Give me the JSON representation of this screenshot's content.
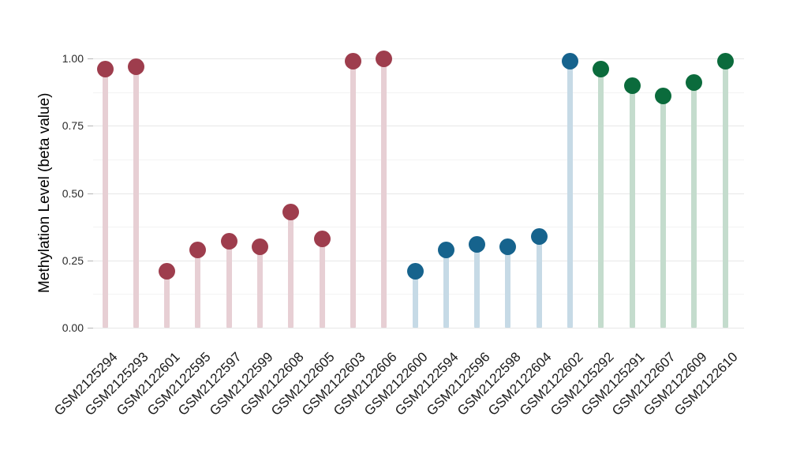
{
  "chart_data": {
    "type": "scatter",
    "variant": "lollipop",
    "title": "",
    "xlabel": "",
    "ylabel": "Methylation Level (beta value)",
    "ylim": [
      0,
      1
    ],
    "grid": "horizontal",
    "legend": "none",
    "yticks": [
      {
        "value": 0.0,
        "label": "0.00"
      },
      {
        "value": 0.25,
        "label": "0.25"
      },
      {
        "value": 0.5,
        "label": "0.50"
      },
      {
        "value": 0.75,
        "label": "0.75"
      },
      {
        "value": 1.0,
        "label": "1.00"
      }
    ],
    "minor_gridlines": [
      0.125,
      0.375,
      0.625,
      0.875
    ],
    "groups": {
      "maroon": {
        "dot_color": "#9e3d4d",
        "stem_color": "#e7cfd4"
      },
      "blue": {
        "dot_color": "#16638d",
        "stem_color": "#c6dae6"
      },
      "green": {
        "dot_color": "#0b6b3c",
        "stem_color": "#c4dccd"
      }
    },
    "points": [
      {
        "label": "GSM2125294",
        "value": 0.96,
        "group": "maroon"
      },
      {
        "label": "GSM2125293",
        "value": 0.97,
        "group": "maroon"
      },
      {
        "label": "GSM2122601",
        "value": 0.21,
        "group": "maroon"
      },
      {
        "label": "GSM2122595",
        "value": 0.29,
        "group": "maroon"
      },
      {
        "label": "GSM2122597",
        "value": 0.32,
        "group": "maroon"
      },
      {
        "label": "GSM2122599",
        "value": 0.3,
        "group": "maroon"
      },
      {
        "label": "GSM2122608",
        "value": 0.43,
        "group": "maroon"
      },
      {
        "label": "GSM2122605",
        "value": 0.33,
        "group": "maroon"
      },
      {
        "label": "GSM2122603",
        "value": 0.99,
        "group": "maroon"
      },
      {
        "label": "GSM2122606",
        "value": 1.0,
        "group": "maroon"
      },
      {
        "label": "GSM2122600",
        "value": 0.21,
        "group": "blue"
      },
      {
        "label": "GSM2122594",
        "value": 0.29,
        "group": "blue"
      },
      {
        "label": "GSM2122596",
        "value": 0.31,
        "group": "blue"
      },
      {
        "label": "GSM2122598",
        "value": 0.3,
        "group": "blue"
      },
      {
        "label": "GSM2122604",
        "value": 0.34,
        "group": "blue"
      },
      {
        "label": "GSM2122602",
        "value": 0.99,
        "group": "blue"
      },
      {
        "label": "GSM2125292",
        "value": 0.96,
        "group": "green"
      },
      {
        "label": "GSM2125291",
        "value": 0.9,
        "group": "green"
      },
      {
        "label": "GSM2122607",
        "value": 0.86,
        "group": "green"
      },
      {
        "label": "GSM2122609",
        "value": 0.91,
        "group": "green"
      },
      {
        "label": "GSM2122610",
        "value": 0.99,
        "group": "green"
      }
    ],
    "colors": {
      "background": "#ffffff",
      "major_gridline": "#e7e7e7",
      "minor_gridline": "#f3f3f3",
      "tick_mark": "#b5b5b5",
      "axis_text": "#1a1a1a"
    }
  }
}
